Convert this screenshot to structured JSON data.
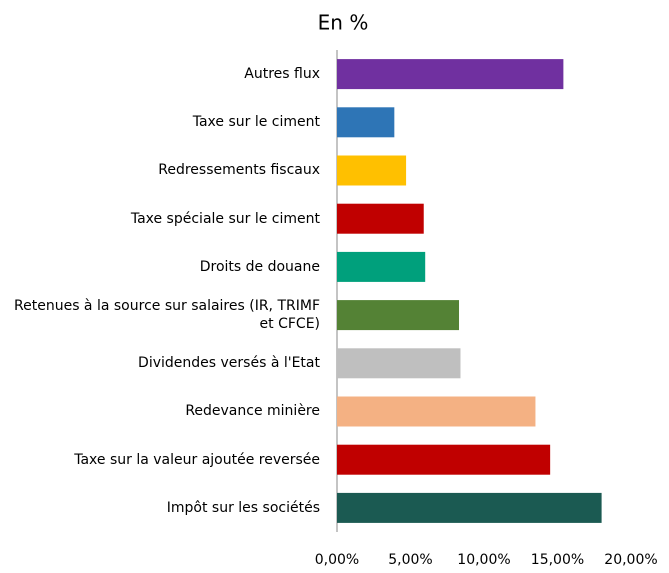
{
  "chart_data": {
    "type": "barh",
    "title": "En %",
    "categories": [
      "Autres flux",
      "Taxe sur le ciment",
      "Redressements fiscaux",
      "Taxe spéciale sur le ciment",
      "Droits de douane",
      "Retenues à la source sur salaires (IR, TRIMF et CFCE)",
      "Dividendes versés à l'Etat",
      "Redevance minière",
      "Taxe sur la valeur ajoutée reversée",
      "Impôt sur les sociétés"
    ],
    "values": [
      15.4,
      3.9,
      4.7,
      5.9,
      6.0,
      8.3,
      8.4,
      13.5,
      14.5,
      18.0
    ],
    "colors": [
      "#7030a0",
      "#2e75b6",
      "#ffc000",
      "#c00000",
      "#00a07c",
      "#548235",
      "#bfbfbf",
      "#f4b183",
      "#c00000",
      "#1b5a52"
    ],
    "xlim": [
      0,
      20
    ],
    "xticks": [
      {
        "value": 0,
        "label": "0,00%"
      },
      {
        "value": 5,
        "label": "5,00%"
      },
      {
        "value": 10,
        "label": "10,00%"
      },
      {
        "value": 15,
        "label": "15,00%"
      },
      {
        "value": 20,
        "label": "20,00%"
      }
    ],
    "grid": false
  }
}
